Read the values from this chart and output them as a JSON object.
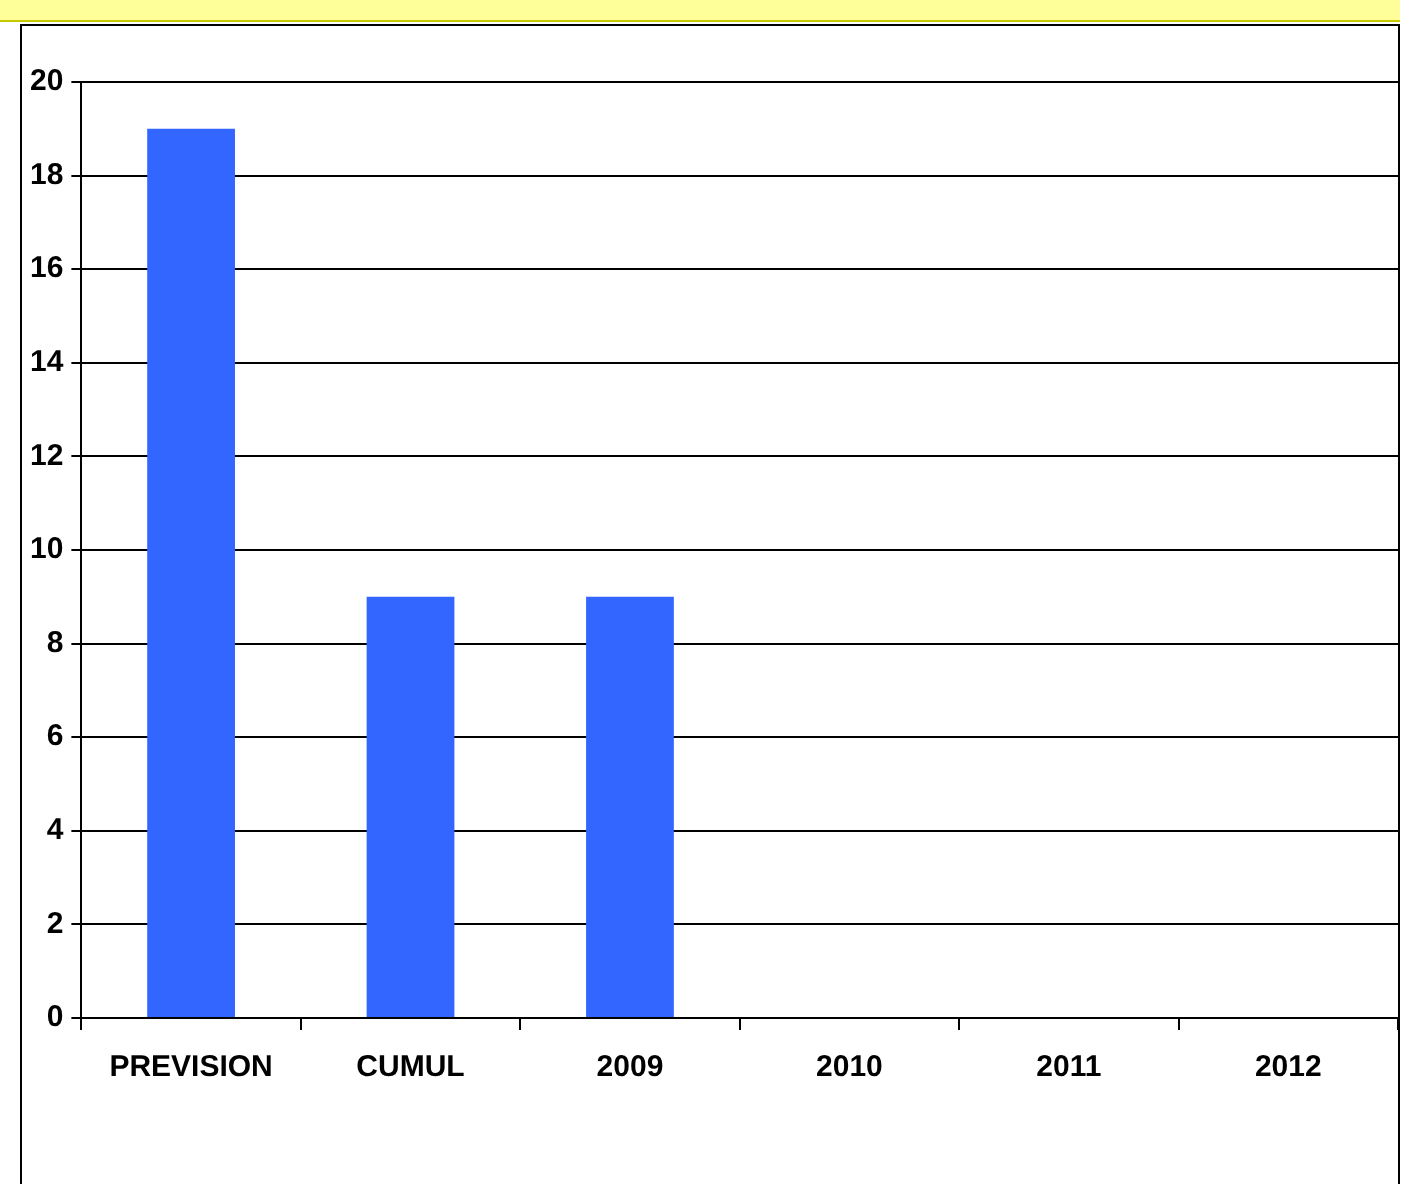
{
  "chart_data": {
    "type": "bar",
    "categories": [
      "PREVISION",
      "CUMUL",
      "2009",
      "2010",
      "2011",
      "2012"
    ],
    "values": [
      19,
      9,
      9,
      null,
      null,
      null
    ],
    "color": "#3366ff",
    "ylim": [
      0,
      20
    ],
    "yticks": [
      0,
      2,
      4,
      6,
      8,
      10,
      12,
      14,
      16,
      18,
      20
    ],
    "grid": "y",
    "legend": false
  }
}
